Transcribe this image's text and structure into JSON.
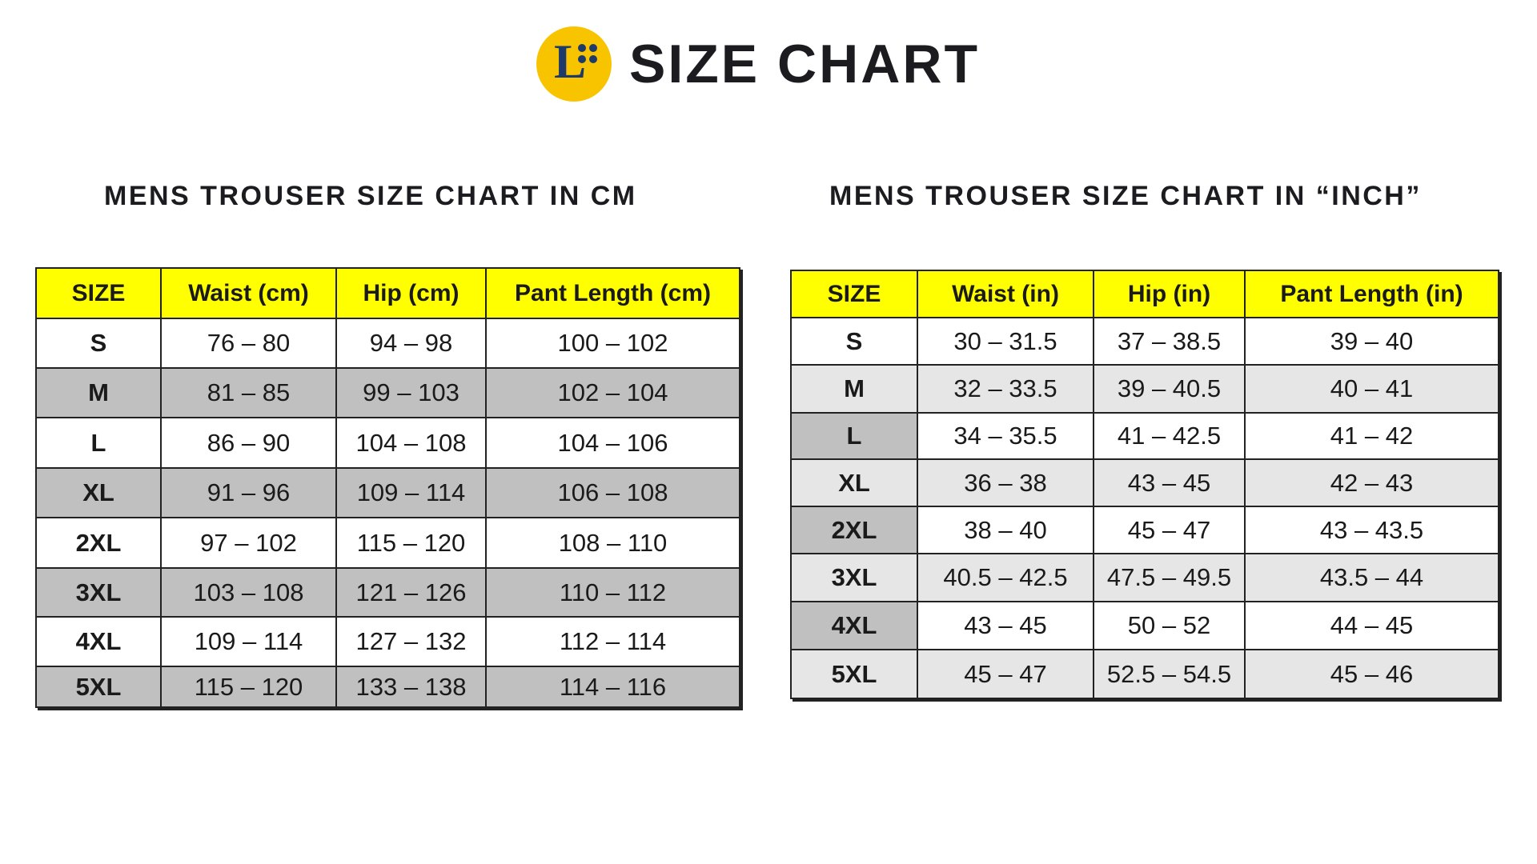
{
  "header": {
    "title": "SIZE CHART",
    "logo_letter": "L",
    "logo_color": "#f8c400"
  },
  "cm_table": {
    "title": "MENS TROUSER SIZE CHART IN CM",
    "columns": [
      "SIZE",
      "Waist (cm)",
      "Hip (cm)",
      "Pant Length (cm)"
    ],
    "rows": [
      [
        "S",
        "76 – 80",
        "94 – 98",
        "100 – 102"
      ],
      [
        "M",
        "81 – 85",
        "99 – 103",
        "102 – 104"
      ],
      [
        "L",
        "86 – 90",
        "104 – 108",
        "104 – 106"
      ],
      [
        "XL",
        "91 – 96",
        "109 – 114",
        "106 – 108"
      ],
      [
        "2XL",
        "97 – 102",
        "115 – 120",
        "108 – 110"
      ],
      [
        "3XL",
        "103 – 108",
        "121 – 126",
        "110 – 112"
      ],
      [
        "4XL",
        "109 – 114",
        "127 – 132",
        "112 – 114"
      ],
      [
        "5XL",
        "115 – 120",
        "133 – 138",
        "114 – 116"
      ]
    ]
  },
  "inch_table": {
    "title": "MENS TROUSER SIZE CHART IN “INCH”",
    "columns": [
      "SIZE",
      "Waist (in)",
      "Hip (in)",
      "Pant Length (in)"
    ],
    "rows": [
      [
        "S",
        "30 – 31.5",
        "37 – 38.5",
        "39 – 40"
      ],
      [
        "M",
        "32 – 33.5",
        "39 – 40.5",
        "40 – 41"
      ],
      [
        "L",
        "34 – 35.5",
        "41 – 42.5",
        "41 – 42"
      ],
      [
        "XL",
        "36 – 38",
        "43 – 45",
        "42 – 43"
      ],
      [
        "2XL",
        "38 – 40",
        "45 – 47",
        "43 – 43.5"
      ],
      [
        "3XL",
        "40.5 – 42.5",
        "47.5 – 49.5",
        "43.5 – 44"
      ],
      [
        "4XL",
        "43 – 45",
        "50 – 52",
        "44 – 45"
      ],
      [
        "5XL",
        "45 – 47",
        "52.5 – 54.5",
        "45 – 46"
      ]
    ]
  },
  "colors": {
    "header_yellow": "#ffff00",
    "row_gray": "#c0c0c0",
    "row_light_gray": "#e6e6e6"
  }
}
